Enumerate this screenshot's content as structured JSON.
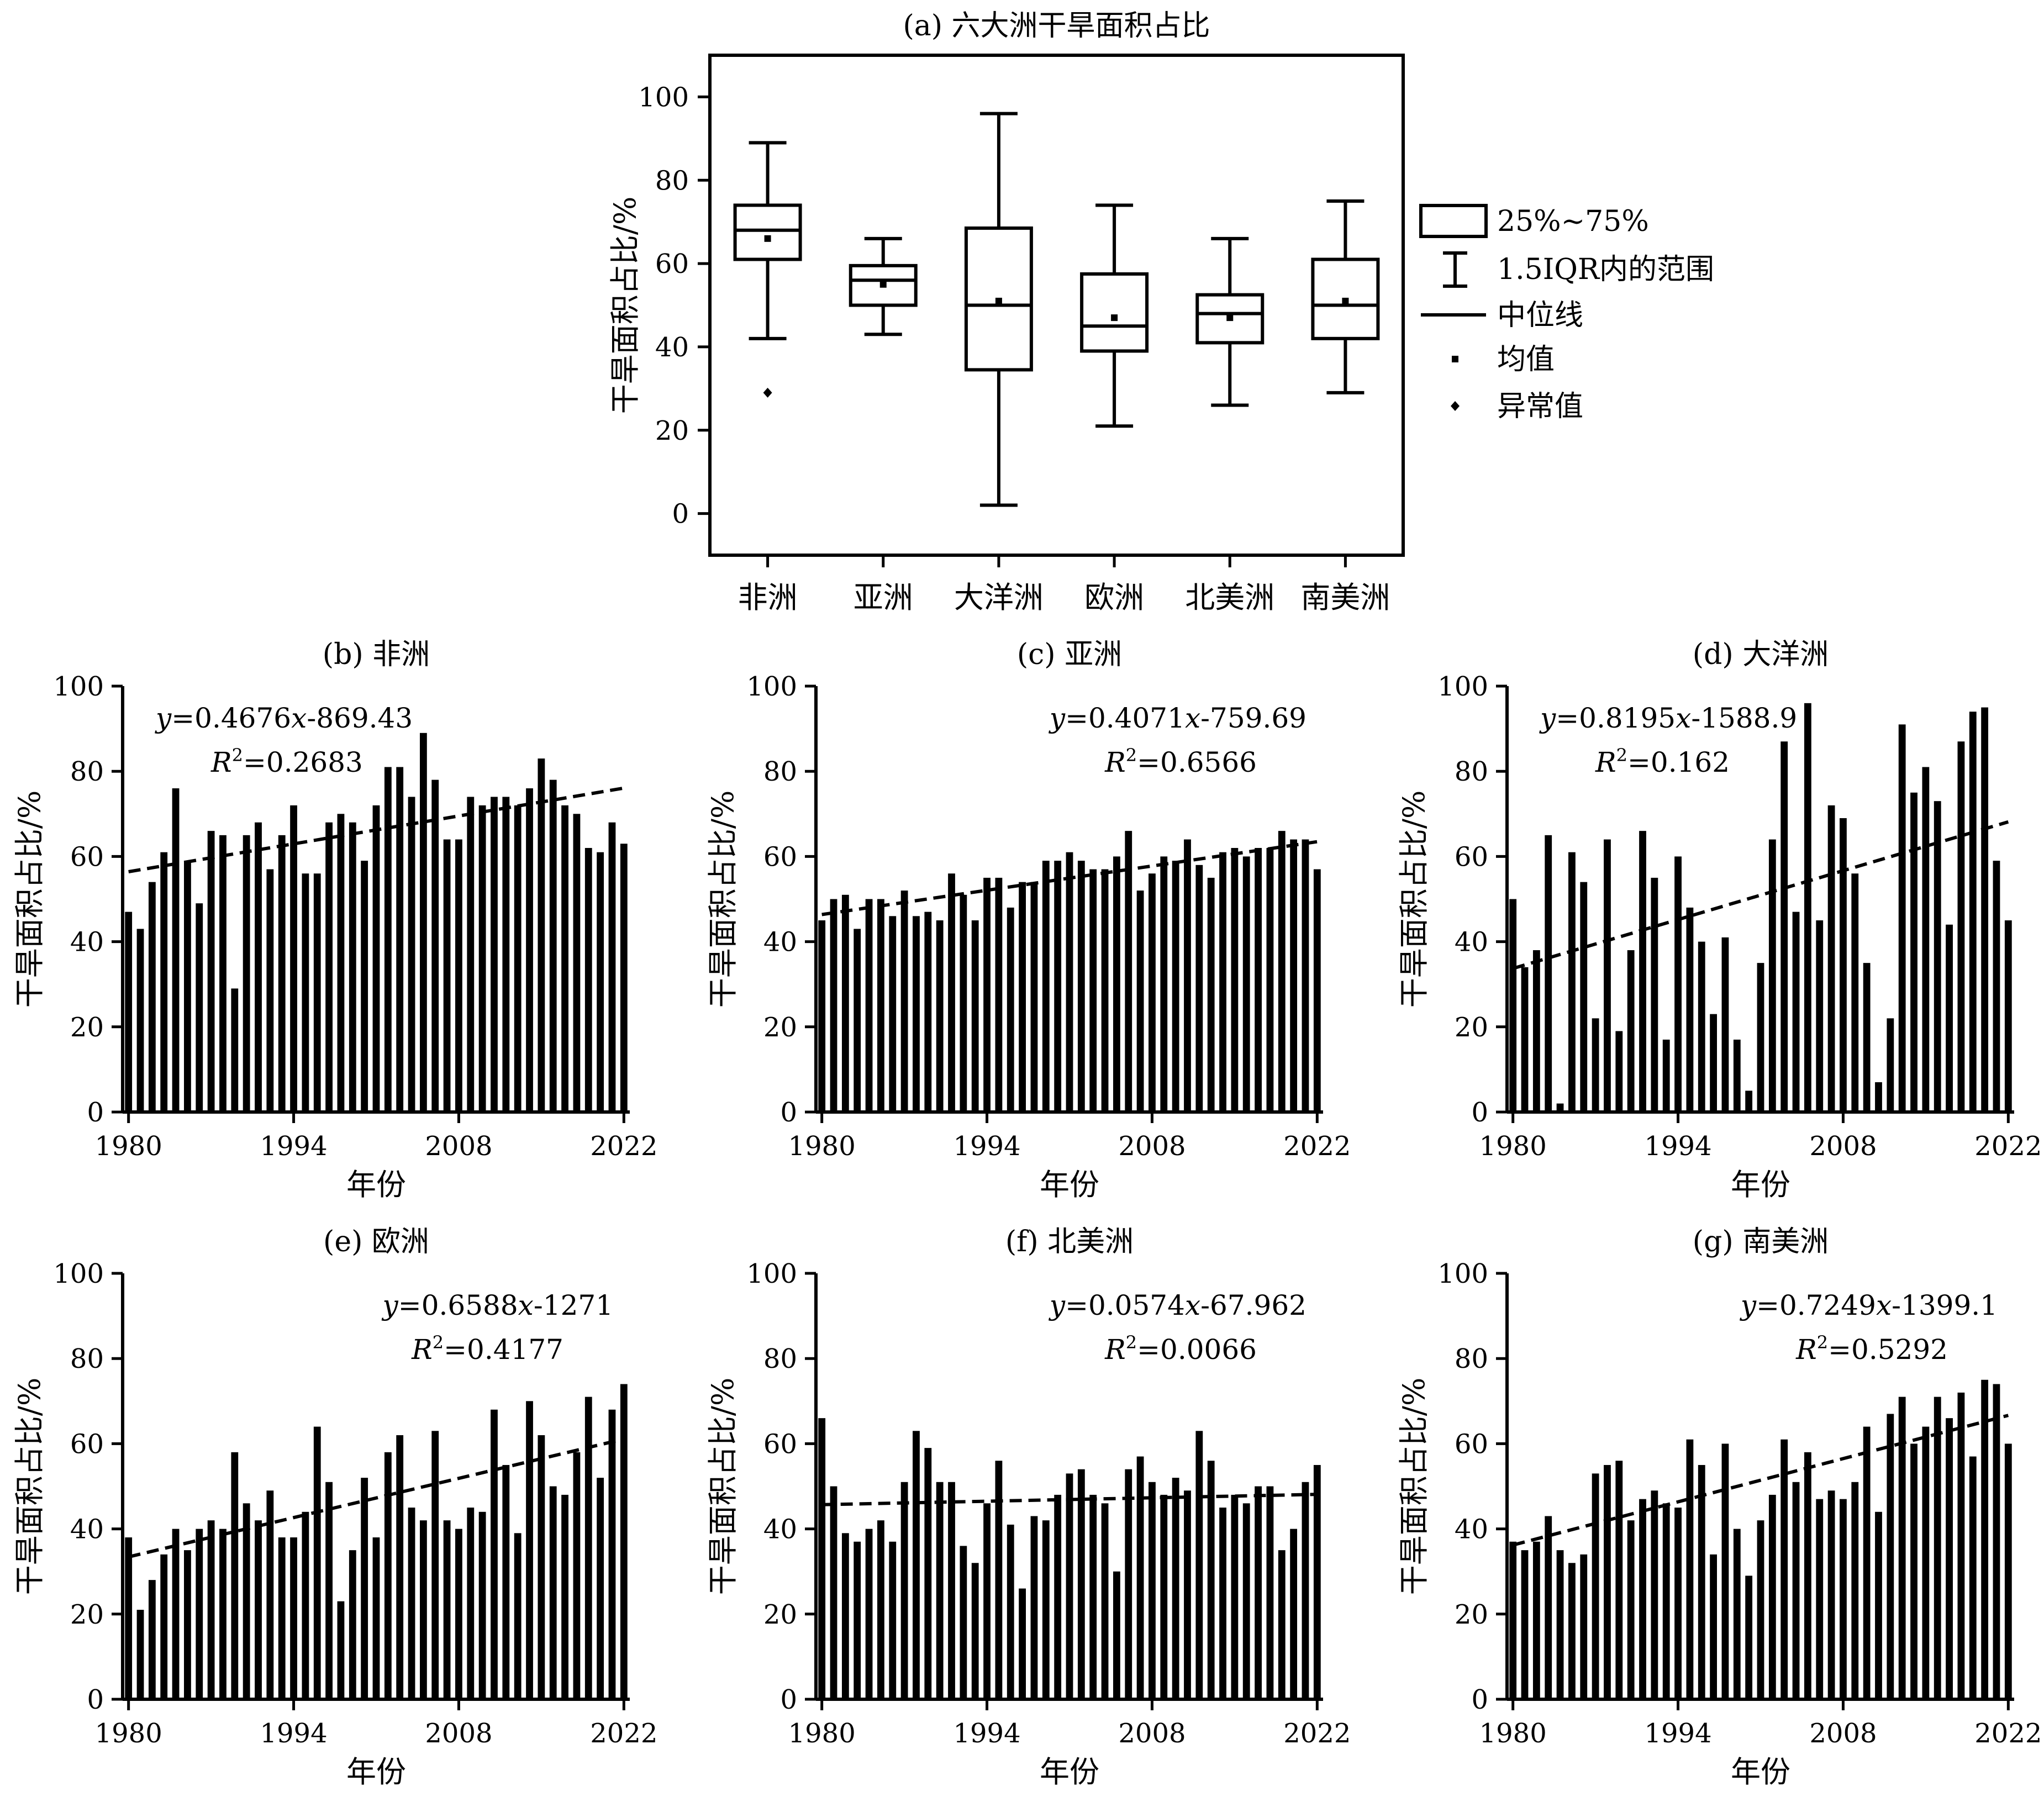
{
  "figure": {
    "colors": {
      "ink": "#000000",
      "background": "#ffffff"
    }
  },
  "chart_data": [
    {
      "id": "a",
      "type": "box",
      "title": "(a) 六大洲干旱面积占比",
      "ylabel": "干旱面积占比/%",
      "ylim": [
        -10,
        110
      ],
      "yticks": [
        0,
        20,
        40,
        60,
        80,
        100
      ],
      "categories": [
        "非洲",
        "亚洲",
        "大洋洲",
        "欧洲",
        "北美洲",
        "南美洲"
      ],
      "boxes": [
        {
          "category": "非洲",
          "whisker_low": 42,
          "q1": 61,
          "median": 68,
          "q3": 74,
          "whisker_high": 89,
          "mean": 66,
          "outliers": [
            29
          ]
        },
        {
          "category": "亚洲",
          "whisker_low": 43,
          "q1": 50,
          "median": 56,
          "q3": 59.5,
          "whisker_high": 66,
          "mean": 55,
          "outliers": []
        },
        {
          "category": "大洋洲",
          "whisker_low": 2,
          "q1": 34.5,
          "median": 50,
          "q3": 68.5,
          "whisker_high": 96,
          "mean": 51,
          "outliers": []
        },
        {
          "category": "欧洲",
          "whisker_low": 21,
          "q1": 39,
          "median": 45,
          "q3": 57.5,
          "whisker_high": 74,
          "mean": 47,
          "outliers": []
        },
        {
          "category": "北美洲",
          "whisker_low": 26,
          "q1": 41,
          "median": 48,
          "q3": 52.5,
          "whisker_high": 66,
          "mean": 47,
          "outliers": []
        },
        {
          "category": "南美洲",
          "whisker_low": 29,
          "q1": 42,
          "median": 50,
          "q3": 61,
          "whisker_high": 75,
          "mean": 51,
          "outliers": []
        }
      ],
      "legend": {
        "position": "right",
        "items": [
          "25%~75%",
          "1.5IQR内的范围",
          "中位线",
          "均值",
          "异常值"
        ]
      }
    },
    {
      "id": "b",
      "type": "bar",
      "title": "(b) 非洲",
      "xlabel": "年份",
      "ylabel": "干旱面积占比/%",
      "ylim": [
        0,
        100
      ],
      "yticks": [
        0,
        20,
        40,
        60,
        80,
        100
      ],
      "xlim": [
        1980,
        2022
      ],
      "xticks": [
        1980,
        1994,
        2008,
        2022
      ],
      "years_start": 1980,
      "values": [
        47,
        43,
        54,
        61,
        76,
        59,
        49,
        66,
        65,
        29,
        65,
        68,
        57,
        65,
        72,
        56,
        56,
        68,
        70,
        68,
        59,
        72,
        81,
        81,
        74,
        89,
        78,
        64,
        64,
        74,
        72,
        74,
        74,
        72,
        76,
        83,
        78,
        72,
        70,
        62,
        61,
        68,
        63
      ],
      "trend": {
        "slope": 0.4676,
        "intercept": -869.43
      },
      "equation": {
        "y": "y",
        "x": "x",
        "coef": "=0.4676",
        "const": "-869.43"
      },
      "r2": {
        "R": "R",
        "sup": "2",
        "value": "=0.2683"
      },
      "annotation_side": "left"
    },
    {
      "id": "c",
      "type": "bar",
      "title": "(c) 亚洲",
      "xlabel": "年份",
      "ylabel": "干旱面积占比/%",
      "ylim": [
        0,
        100
      ],
      "yticks": [
        0,
        20,
        40,
        60,
        80,
        100
      ],
      "xlim": [
        1980,
        2022
      ],
      "xticks": [
        1980,
        1994,
        2008,
        2022
      ],
      "years_start": 1980,
      "values": [
        45,
        50,
        51,
        43,
        50,
        50,
        46,
        52,
        46,
        47,
        45,
        56,
        51,
        45,
        55,
        55,
        48,
        54,
        54,
        59,
        59,
        61,
        59,
        57,
        57,
        60,
        66,
        52,
        56,
        60,
        59,
        64,
        58,
        55,
        61,
        62,
        60,
        62,
        62,
        66,
        64,
        64,
        57
      ],
      "trend": {
        "slope": 0.4071,
        "intercept": -759.69
      },
      "equation": {
        "y": "y",
        "x": "x",
        "coef": "=0.4071",
        "const": "-759.69"
      },
      "r2": {
        "R": "R",
        "sup": "2",
        "value": "=0.6566"
      },
      "annotation_side": "right"
    },
    {
      "id": "d",
      "type": "bar",
      "title": "(d) 大洋洲",
      "xlabel": "年份",
      "ylabel": "干旱面积占比/%",
      "ylim": [
        0,
        100
      ],
      "yticks": [
        0,
        20,
        40,
        60,
        80,
        100
      ],
      "xlim": [
        1980,
        2022
      ],
      "xticks": [
        1980,
        1994,
        2008,
        2022
      ],
      "years_start": 1980,
      "values": [
        50,
        34,
        38,
        65,
        2,
        61,
        54,
        22,
        64,
        19,
        38,
        66,
        55,
        17,
        60,
        48,
        40,
        23,
        41,
        17,
        5,
        35,
        64,
        87,
        47,
        96,
        45,
        72,
        69,
        56,
        35,
        7,
        22,
        91,
        75,
        81,
        73,
        44,
        87,
        94,
        95,
        59,
        45
      ],
      "trend": {
        "slope": 0.8195,
        "intercept": -1588.9
      },
      "equation": {
        "y": "y",
        "x": "x",
        "coef": "=0.8195",
        "const": "-1588.9"
      },
      "r2": {
        "R": "R",
        "sup": "2",
        "value": "=0.162"
      },
      "annotation_side": "left"
    },
    {
      "id": "e",
      "type": "bar",
      "title": "(e) 欧洲",
      "xlabel": "年份",
      "ylabel": "干旱面积占比/%",
      "ylim": [
        0,
        100
      ],
      "yticks": [
        0,
        20,
        40,
        60,
        80,
        100
      ],
      "xlim": [
        1980,
        2022
      ],
      "xticks": [
        1980,
        1994,
        2008,
        2022
      ],
      "years_start": 1980,
      "values": [
        38,
        21,
        28,
        34,
        40,
        35,
        40,
        42,
        40,
        58,
        46,
        42,
        49,
        38,
        38,
        44,
        64,
        51,
        23,
        35,
        52,
        38,
        58,
        62,
        45,
        42,
        63,
        42,
        40,
        45,
        44,
        68,
        55,
        39,
        70,
        62,
        50,
        48,
        58,
        71,
        52,
        68,
        74
      ],
      "trend": {
        "slope": 0.6588,
        "intercept": -1271
      },
      "equation": {
        "y": "y",
        "x": "x",
        "coef": "=0.6588",
        "const": "-1271"
      },
      "r2": {
        "R": "R",
        "sup": "2",
        "value": "=0.4177"
      },
      "annotation_side": "right"
    },
    {
      "id": "f",
      "type": "bar",
      "title": "(f) 北美洲",
      "xlabel": "年份",
      "ylabel": "干旱面积占比/%",
      "ylim": [
        0,
        100
      ],
      "yticks": [
        0,
        20,
        40,
        60,
        80,
        100
      ],
      "xlim": [
        1980,
        2022
      ],
      "xticks": [
        1980,
        1994,
        2008,
        2022
      ],
      "years_start": 1980,
      "values": [
        66,
        50,
        39,
        37,
        40,
        42,
        37,
        51,
        63,
        59,
        51,
        51,
        36,
        32,
        46,
        56,
        41,
        26,
        43,
        42,
        48,
        53,
        54,
        48,
        46,
        30,
        54,
        57,
        51,
        48,
        52,
        49,
        63,
        56,
        45,
        48,
        46,
        50,
        50,
        35,
        40,
        51,
        55
      ],
      "trend": {
        "slope": 0.0574,
        "intercept": -67.962
      },
      "equation": {
        "y": "y",
        "x": "x",
        "coef": "=0.0574",
        "const": "-67.962"
      },
      "r2": {
        "R": "R",
        "sup": "2",
        "value": "=0.0066"
      },
      "annotation_side": "right"
    },
    {
      "id": "g",
      "type": "bar",
      "title": "(g) 南美洲",
      "xlabel": "年份",
      "ylabel": "干旱面积占比/%",
      "ylim": [
        0,
        100
      ],
      "yticks": [
        0,
        20,
        40,
        60,
        80,
        100
      ],
      "xlim": [
        1980,
        2022
      ],
      "xticks": [
        1980,
        1994,
        2008,
        2022
      ],
      "years_start": 1980,
      "values": [
        37,
        35,
        37,
        43,
        35,
        32,
        34,
        53,
        55,
        56,
        42,
        47,
        49,
        46,
        45,
        61,
        55,
        34,
        60,
        40,
        29,
        42,
        48,
        61,
        51,
        58,
        47,
        49,
        47,
        51,
        64,
        44,
        67,
        71,
        60,
        64,
        71,
        66,
        72,
        57,
        75,
        74,
        60
      ],
      "trend": {
        "slope": 0.7249,
        "intercept": -1399.1
      },
      "equation": {
        "y": "y",
        "x": "x",
        "coef": "=0.7249",
        "const": "-1399.1"
      },
      "r2": {
        "R": "R",
        "sup": "2",
        "value": "=0.5292"
      },
      "annotation_side": "right"
    }
  ]
}
